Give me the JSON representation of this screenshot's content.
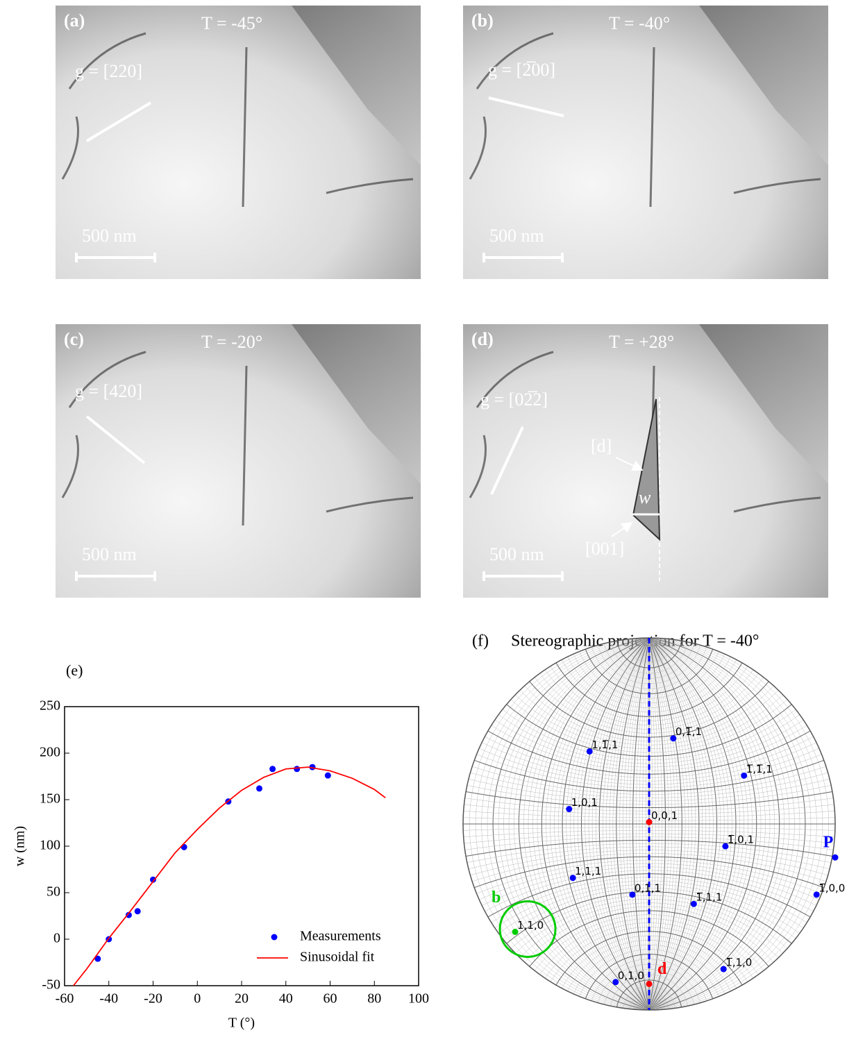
{
  "micrographs": [
    {
      "label": "(a)",
      "temperature": "T = -45°",
      "g": "g = [220]",
      "scale_bar": "500 nm"
    },
    {
      "label": "(b)",
      "temperature": "T = -40°",
      "g": "g = [2̅00]",
      "scale_bar": "500 nm"
    },
    {
      "label": "(c)",
      "temperature": "T = -20°",
      "g": "g = [420]",
      "scale_bar": "500 nm"
    },
    {
      "label": "(d)",
      "temperature": "T = +28°",
      "g": "g = [02̅2]",
      "scale_bar": "500 nm",
      "direction_label": "[d]",
      "width_label": "w",
      "axis_label": "[001]"
    }
  ],
  "chart_data": {
    "type": "line",
    "panel_label": "(e)",
    "x_label": "T (°)",
    "y_label": "w (nm)",
    "xlim": [
      -60,
      100
    ],
    "xticks": [
      -60,
      -40,
      -20,
      0,
      20,
      40,
      60,
      80,
      100
    ],
    "ylim": [
      -50,
      250
    ],
    "yticks": [
      -50,
      0,
      50,
      100,
      150,
      200,
      250
    ],
    "legend": "lower right",
    "series": [
      {
        "name": "Measurements",
        "color": "#0000ff",
        "style": "markers",
        "x": [
          -45,
          -40,
          -31,
          -27,
          -20,
          -6,
          14,
          28,
          34,
          45,
          52,
          59
        ],
        "values": [
          -21,
          0,
          26,
          30,
          64,
          99,
          148,
          162,
          183,
          183,
          185,
          176
        ]
      },
      {
        "name": "Sinusoidal fit",
        "color": "#ff0000",
        "style": "line",
        "x": [
          -56,
          -50,
          -40,
          -30,
          -20,
          -10,
          0,
          10,
          20,
          30,
          40,
          50,
          60,
          70,
          80,
          85
        ],
        "values": [
          -50,
          -32,
          1,
          31,
          62,
          93,
          118,
          141,
          160,
          174,
          183,
          185,
          181,
          173,
          161,
          152
        ]
      }
    ]
  },
  "stereogram": {
    "panel_label": "(f)",
    "title": "Stereographic projection for T = -40°",
    "points": [
      {
        "label": "1,1̅,1",
        "x": -0.32,
        "y": 0.39,
        "color": "#0000ff"
      },
      {
        "label": "0,1̅,1",
        "x": 0.13,
        "y": 0.46,
        "color": "#0000ff"
      },
      {
        "label": "1̅,1̅,1",
        "x": 0.51,
        "y": 0.26,
        "color": "#0000ff"
      },
      {
        "label": "1,0,1",
        "x": -0.43,
        "y": 0.08,
        "color": "#0000ff"
      },
      {
        "label": "0,0,1",
        "x": 0,
        "y": 0.01,
        "color": "#ff0000"
      },
      {
        "label": "1̅,0,1",
        "x": 0.41,
        "y": -0.12,
        "color": "#0000ff"
      },
      {
        "label": "P",
        "x": 1.0,
        "y": -0.18,
        "color": "#0000ff"
      },
      {
        "label": "1,1,1",
        "x": -0.41,
        "y": -0.29,
        "color": "#0000ff"
      },
      {
        "label": "0,1,1",
        "x": -0.09,
        "y": -0.38,
        "color": "#0000ff"
      },
      {
        "label": "1̅,1,1",
        "x": 0.24,
        "y": -0.43,
        "color": "#0000ff"
      },
      {
        "label": "1̅,0,0",
        "x": 0.9,
        "y": -0.38,
        "color": "#0000ff"
      },
      {
        "label": "1,1,0",
        "x": -0.72,
        "y": -0.58,
        "color": "#00cc00"
      },
      {
        "label": "1̅,1,0",
        "x": 0.4,
        "y": -0.78,
        "color": "#0000ff"
      },
      {
        "label": "0,1,0",
        "x": -0.18,
        "y": -0.85,
        "color": "#0000ff"
      },
      {
        "label": "d",
        "x": 0,
        "y": -0.86,
        "color": "#ff0000"
      }
    ],
    "circled_label": "b"
  }
}
